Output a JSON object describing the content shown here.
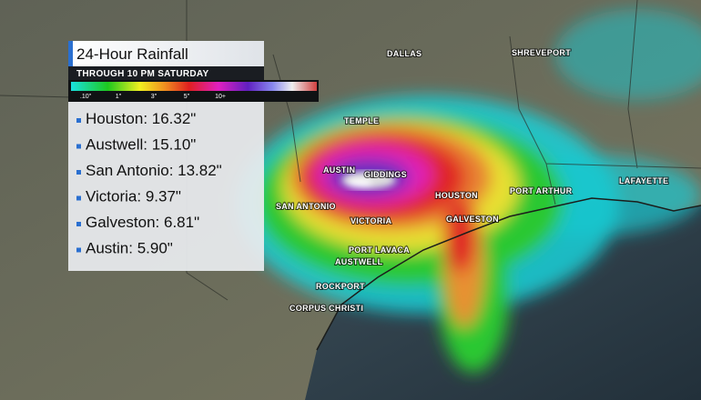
{
  "panel": {
    "title": "24-Hour Rainfall",
    "subtitle": "THROUGH 10 PM SATURDAY",
    "scale_labels": [
      ".10\"",
      "1\"",
      "3\"",
      "5\"",
      "10+"
    ],
    "items": [
      "Houston: 16.32\"",
      "Austwell: 15.10\"",
      "San Antonio: 13.82\"",
      "Victoria: 9.37\"",
      "Galveston: 6.81\"",
      "Austin: 5.90\""
    ]
  },
  "map": {
    "cities": [
      "DALLAS",
      "SHREVEPORT",
      "TEMPLE",
      "AUSTIN",
      "GIDDINGS",
      "HOUSTON",
      "PORT ARTHUR",
      "LAFAYETTE",
      "SAN ANTONIO",
      "VICTORIA",
      "GALVESTON",
      "PORT LAVACA",
      "AUSTWELL",
      "ROCKPORT",
      "CORPUS CHRISTI"
    ]
  }
}
